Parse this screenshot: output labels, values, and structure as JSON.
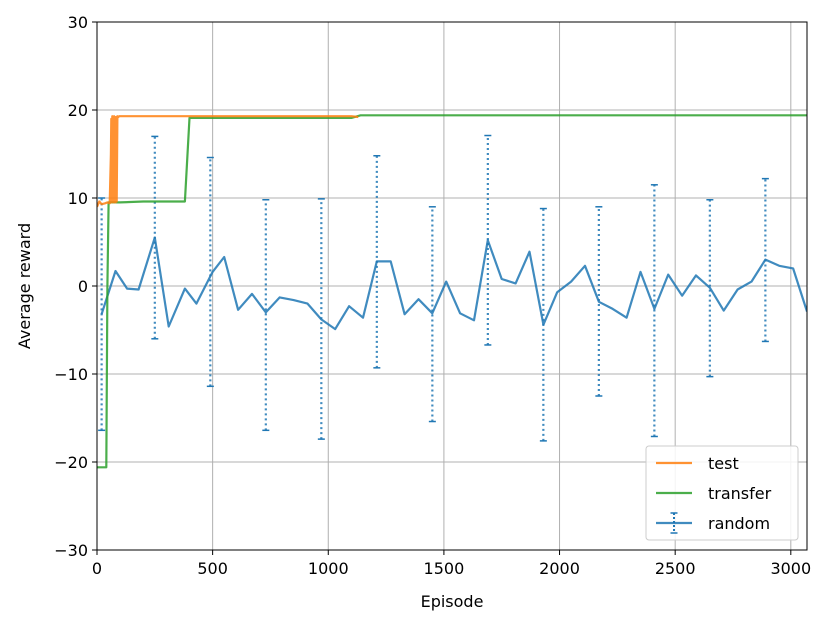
{
  "chart_data": {
    "type": "line",
    "xlabel": "Episode",
    "ylabel": "Average reward",
    "xlim": [
      0,
      3070
    ],
    "ylim": [
      -30,
      30
    ],
    "xticks": [
      0,
      500,
      1000,
      1500,
      2000,
      2500,
      3000
    ],
    "xtick_labels": [
      "0",
      "500",
      "1000",
      "1500",
      "2000",
      "2500",
      "3000"
    ],
    "yticks": [
      -30,
      -20,
      -10,
      0,
      10,
      20,
      30
    ],
    "ytick_labels": [
      "−30",
      "−20",
      "−10",
      "0",
      "10",
      "20",
      "30"
    ],
    "grid": true,
    "legend_position": "lower-right",
    "series": [
      {
        "name": "test",
        "color": "#ff7f0e",
        "x": [
          0,
          10,
          20,
          35,
          45,
          55,
          60,
          62,
          64,
          66,
          68,
          70,
          72,
          74,
          76,
          78,
          80,
          82,
          85,
          88,
          92,
          96,
          100,
          110,
          130,
          200,
          300,
          500,
          700,
          900,
          1100,
          1130
        ],
        "y": [
          9.0,
          9.6,
          9.3,
          9.4,
          9.5,
          9.4,
          15.0,
          19.0,
          9.5,
          19.3,
          9.6,
          19.2,
          9.5,
          19.3,
          9.6,
          19.1,
          9.5,
          19.2,
          9.6,
          19.3,
          19.2,
          19.3,
          19.3,
          19.3,
          19.3,
          19.3,
          19.3,
          19.3,
          19.3,
          19.3,
          19.3,
          19.2
        ]
      },
      {
        "name": "transfer",
        "color": "#2ca02c",
        "x": [
          0,
          10,
          20,
          30,
          40,
          45,
          50,
          60,
          70,
          100,
          200,
          300,
          380,
          400,
          500,
          800,
          1100,
          1140,
          1500,
          2000,
          2500,
          3000,
          3070
        ],
        "y": [
          -20.6,
          -20.6,
          -20.6,
          -20.6,
          -20.6,
          0.0,
          9.5,
          9.5,
          9.5,
          9.5,
          9.6,
          9.6,
          9.6,
          19.1,
          19.1,
          19.1,
          19.1,
          19.4,
          19.4,
          19.4,
          19.4,
          19.4,
          19.4
        ]
      },
      {
        "name": "random",
        "color": "#1f77b4",
        "x": [
          20,
          80,
          130,
          180,
          250,
          310,
          380,
          430,
          500,
          550,
          610,
          670,
          730,
          790,
          850,
          910,
          970,
          1030,
          1090,
          1150,
          1210,
          1270,
          1330,
          1390,
          1450,
          1510,
          1570,
          1630,
          1690,
          1750,
          1810,
          1870,
          1930,
          1990,
          2050,
          2110,
          2170,
          2230,
          2290,
          2350,
          2410,
          2470,
          2530,
          2590,
          2650,
          2710,
          2770,
          2830,
          2890,
          2950,
          3010,
          3070
        ],
        "y": [
          -3.2,
          1.7,
          -0.3,
          -0.4,
          5.5,
          -4.6,
          -0.3,
          -2.0,
          1.6,
          3.3,
          -2.7,
          -0.9,
          -3.0,
          -1.3,
          -1.6,
          -2.0,
          -3.8,
          -4.9,
          -2.3,
          -3.6,
          2.8,
          2.8,
          -3.2,
          -1.5,
          -3.1,
          0.5,
          -3.1,
          -3.9,
          5.2,
          0.8,
          0.3,
          3.9,
          -4.4,
          -0.7,
          0.5,
          2.3,
          -1.8,
          -2.6,
          -3.6,
          1.6,
          -2.6,
          1.3,
          -1.1,
          1.2,
          -0.2,
          -2.8,
          -0.4,
          0.5,
          3.0,
          2.3,
          2.0,
          -2.9
        ],
        "error_bars": [
          {
            "x": 20,
            "low": -16.4,
            "high": 10.0
          },
          {
            "x": 250,
            "low": -6.0,
            "high": 17.0
          },
          {
            "x": 490,
            "low": -11.4,
            "high": 14.6
          },
          {
            "x": 730,
            "low": -16.4,
            "high": 9.8
          },
          {
            "x": 970,
            "low": -17.4,
            "high": 9.9
          },
          {
            "x": 1210,
            "low": -9.3,
            "high": 14.8
          },
          {
            "x": 1450,
            "low": -15.4,
            "high": 9.0
          },
          {
            "x": 1690,
            "low": -6.7,
            "high": 17.1
          },
          {
            "x": 1930,
            "low": -17.6,
            "high": 8.8
          },
          {
            "x": 2170,
            "low": -12.5,
            "high": 9.0
          },
          {
            "x": 2410,
            "low": -17.1,
            "high": 11.5
          },
          {
            "x": 2650,
            "low": -10.3,
            "high": 9.8
          },
          {
            "x": 2890,
            "low": -6.3,
            "high": 12.2
          }
        ]
      }
    ]
  }
}
